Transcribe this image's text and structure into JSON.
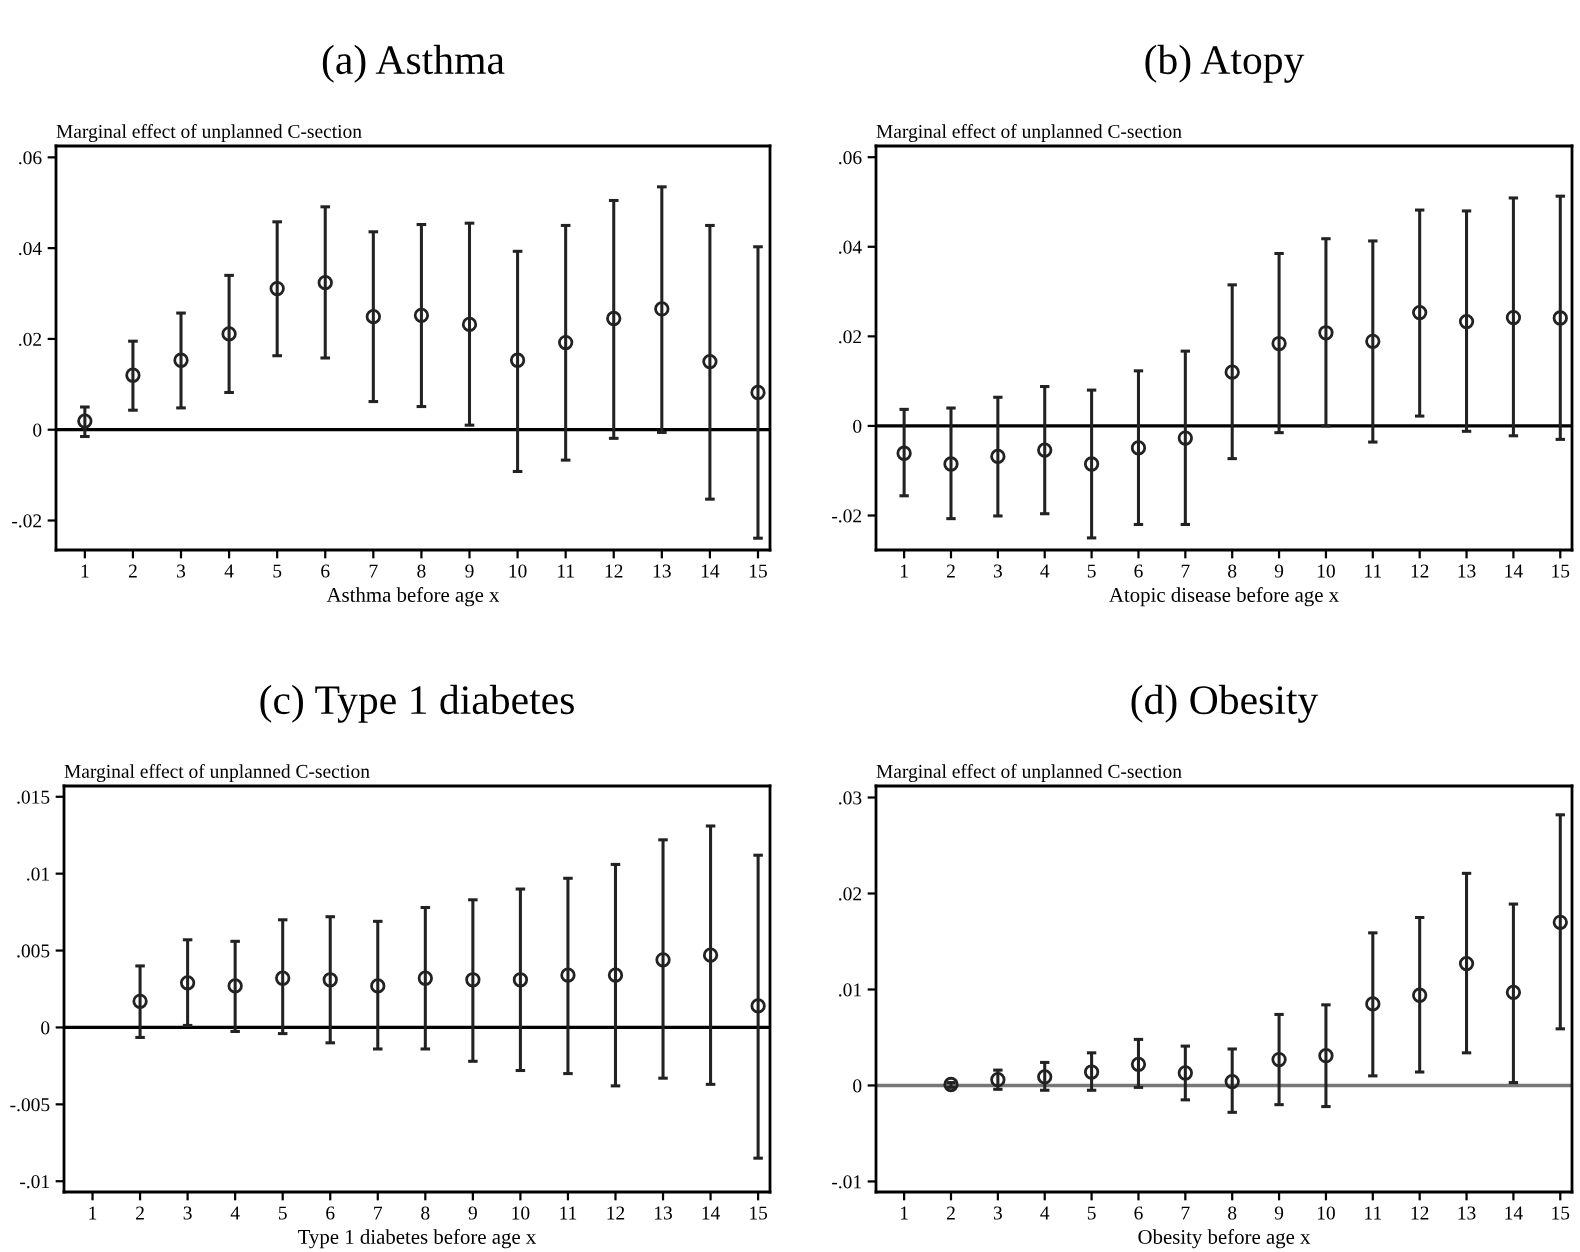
{
  "chart_data": [
    {
      "type": "scatter",
      "title": "(a) Asthma",
      "ylabel": "Marginal effect of unplanned C-section",
      "xlabel": "Asthma before age x",
      "categories": [
        "1",
        "2",
        "3",
        "4",
        "5",
        "6",
        "7",
        "8",
        "9",
        "10",
        "11",
        "12",
        "13",
        "14",
        "15"
      ],
      "series": [
        {
          "color": "#222222",
          "values": [
            0.0019,
            0.012,
            0.0153,
            0.0211,
            0.0311,
            0.0324,
            0.0249,
            0.0252,
            0.0232,
            0.0153,
            0.0192,
            0.0245,
            0.0266,
            0.015,
            0.0082
          ],
          "errors": [
            [
              -0.0015,
              0.005
            ],
            [
              0.0043,
              0.0195
            ],
            [
              0.0048,
              0.0257
            ],
            [
              0.0082,
              0.034
            ],
            [
              0.0163,
              0.0458
            ],
            [
              0.0158,
              0.0491
            ],
            [
              0.0062,
              0.0436
            ],
            [
              0.0051,
              0.0452
            ],
            [
              0.001,
              0.0455
            ],
            [
              -0.0092,
              0.0393
            ],
            [
              -0.0067,
              0.045
            ],
            [
              -0.0019,
              0.0505
            ],
            [
              -0.0006,
              0.0535
            ],
            [
              -0.0153,
              0.045
            ],
            [
              -0.0239,
              0.0403
            ]
          ]
        }
      ],
      "ylim": [
        -0.0265,
        0.0625
      ],
      "yticks": [
        {
          "value": -0.02,
          "label": "-.02"
        },
        {
          "value": 0,
          "label": "0"
        },
        {
          "value": 0.02,
          "label": ".02"
        },
        {
          "value": 0.04,
          "label": ".04"
        },
        {
          "value": 0.06,
          "label": ".06"
        }
      ],
      "ref_lines": [
        {
          "axis": "y",
          "value": 0,
          "color": "#000000"
        }
      ],
      "marker": "circle",
      "grid": false,
      "legend": false
    },
    {
      "type": "scatter",
      "title": "(b) Atopy",
      "ylabel": "Marginal effect of unplanned C-section",
      "xlabel": "Atopic disease before age x",
      "categories": [
        "1",
        "2",
        "3",
        "4",
        "5",
        "6",
        "7",
        "8",
        "9",
        "10",
        "11",
        "12",
        "13",
        "14",
        "15"
      ],
      "series": [
        {
          "color": "#222222",
          "values": [
            -0.0061,
            -0.0085,
            -0.0068,
            -0.0054,
            -0.0085,
            -0.0049,
            -0.0027,
            0.012,
            0.0184,
            0.0208,
            0.0189,
            0.0253,
            0.0233,
            0.0242,
            0.0241
          ],
          "errors": [
            [
              -0.0156,
              0.0037
            ],
            [
              -0.0207,
              0.004
            ],
            [
              -0.0201,
              0.0064
            ],
            [
              -0.0196,
              0.0088
            ],
            [
              -0.025,
              0.008
            ],
            [
              -0.022,
              0.0123
            ],
            [
              -0.022,
              0.0167
            ],
            [
              -0.0073,
              0.0315
            ],
            [
              -0.0015,
              0.0385
            ],
            [
              0,
              0.0418
            ],
            [
              -0.0036,
              0.0413
            ],
            [
              0.0022,
              0.0482
            ],
            [
              -0.0012,
              0.048
            ],
            [
              -0.0022,
              0.0509
            ],
            [
              -0.003,
              0.0513
            ]
          ]
        }
      ],
      "ylim": [
        -0.0277,
        0.0625
      ],
      "yticks": [
        {
          "value": -0.02,
          "label": "-.02"
        },
        {
          "value": 0,
          "label": "0"
        },
        {
          "value": 0.02,
          "label": ".02"
        },
        {
          "value": 0.04,
          "label": ".04"
        },
        {
          "value": 0.06,
          "label": ".06"
        }
      ],
      "ref_lines": [
        {
          "axis": "y",
          "value": 0,
          "color": "#000000"
        }
      ],
      "marker": "circle",
      "grid": false,
      "legend": false
    },
    {
      "type": "scatter",
      "title": "(c) Type 1 diabetes",
      "ylabel": "Marginal effect of unplanned C-section",
      "xlabel": "Type 1 diabetes before age x",
      "categories": [
        "1",
        "2",
        "3",
        "4",
        "5",
        "6",
        "7",
        "8",
        "9",
        "10",
        "11",
        "12",
        "13",
        "14",
        "15"
      ],
      "series": [
        {
          "color": "#222222",
          "values": [
            null,
            0.0017,
            0.0029,
            0.0027,
            0.0032,
            0.0031,
            0.0027,
            0.0032,
            0.0031,
            0.0031,
            0.0034,
            0.0034,
            0.0044,
            0.0047,
            0.0014
          ],
          "errors": [
            null,
            [
              -0.00065,
              0.004
            ],
            [
              0.00013,
              0.0057
            ],
            [
              -0.00026,
              0.0056
            ],
            [
              -0.0004,
              0.007
            ],
            [
              -0.001,
              0.0072
            ],
            [
              -0.0014,
              0.0069
            ],
            [
              -0.0014,
              0.0078
            ],
            [
              -0.0022,
              0.0083
            ],
            [
              -0.0028,
              0.009
            ],
            [
              -0.003,
              0.0097
            ],
            [
              -0.0038,
              0.0106
            ],
            [
              -0.0033,
              0.0122
            ],
            [
              -0.0037,
              0.0131
            ],
            [
              -0.0085,
              0.0112
            ]
          ]
        }
      ],
      "ylim": [
        -0.0107,
        0.0157
      ],
      "yticks": [
        {
          "value": -0.01,
          "label": "-.01"
        },
        {
          "value": -0.005,
          "label": "-.005"
        },
        {
          "value": 0,
          "label": "0"
        },
        {
          "value": 0.005,
          "label": ".005"
        },
        {
          "value": 0.01,
          "label": ".01"
        },
        {
          "value": 0.015,
          "label": ".015"
        }
      ],
      "ref_lines": [
        {
          "axis": "y",
          "value": 0,
          "color": "#000000"
        }
      ],
      "marker": "circle",
      "grid": false,
      "legend": false
    },
    {
      "type": "scatter",
      "title": "(d) Obesity",
      "ylabel": "Marginal effect of unplanned C-section",
      "xlabel": "Obesity before age x",
      "categories": [
        "1",
        "2",
        "3",
        "4",
        "5",
        "6",
        "7",
        "8",
        "9",
        "10",
        "11",
        "12",
        "13",
        "14",
        "15"
      ],
      "series": [
        {
          "color": "#222222",
          "values": [
            null,
            0.0001,
            0.0006,
            0.0009,
            0.0014,
            0.0022,
            0.0013,
            0.0004,
            0.0027,
            0.0031,
            0.0085,
            0.0094,
            0.0127,
            0.0097,
            0.017
          ],
          "errors": [
            null,
            [
              -0.0002,
              0.0003
            ],
            [
              -0.0004,
              0.0016
            ],
            [
              -0.0005,
              0.0024
            ],
            [
              -0.0005,
              0.0034
            ],
            [
              -0.0002,
              0.0048
            ],
            [
              -0.0015,
              0.0041
            ],
            [
              -0.0028,
              0.0038
            ],
            [
              -0.002,
              0.0074
            ],
            [
              -0.0022,
              0.0084
            ],
            [
              0.001,
              0.0159
            ],
            [
              0.0014,
              0.0175
            ],
            [
              0.0034,
              0.0221
            ],
            [
              0.0003,
              0.0189
            ],
            [
              0.0059,
              0.0282
            ]
          ]
        }
      ],
      "ylim": [
        -0.0111,
        0.0312
      ],
      "yticks": [
        {
          "value": -0.01,
          "label": "-.01"
        },
        {
          "value": 0,
          "label": "0"
        },
        {
          "value": 0.01,
          "label": ".01"
        },
        {
          "value": 0.02,
          "label": ".02"
        },
        {
          "value": 0.03,
          "label": ".03"
        }
      ],
      "ref_lines": [
        {
          "axis": "y",
          "value": 0,
          "color": "#777777"
        }
      ],
      "marker": "circle",
      "grid": false,
      "legend": false
    }
  ]
}
